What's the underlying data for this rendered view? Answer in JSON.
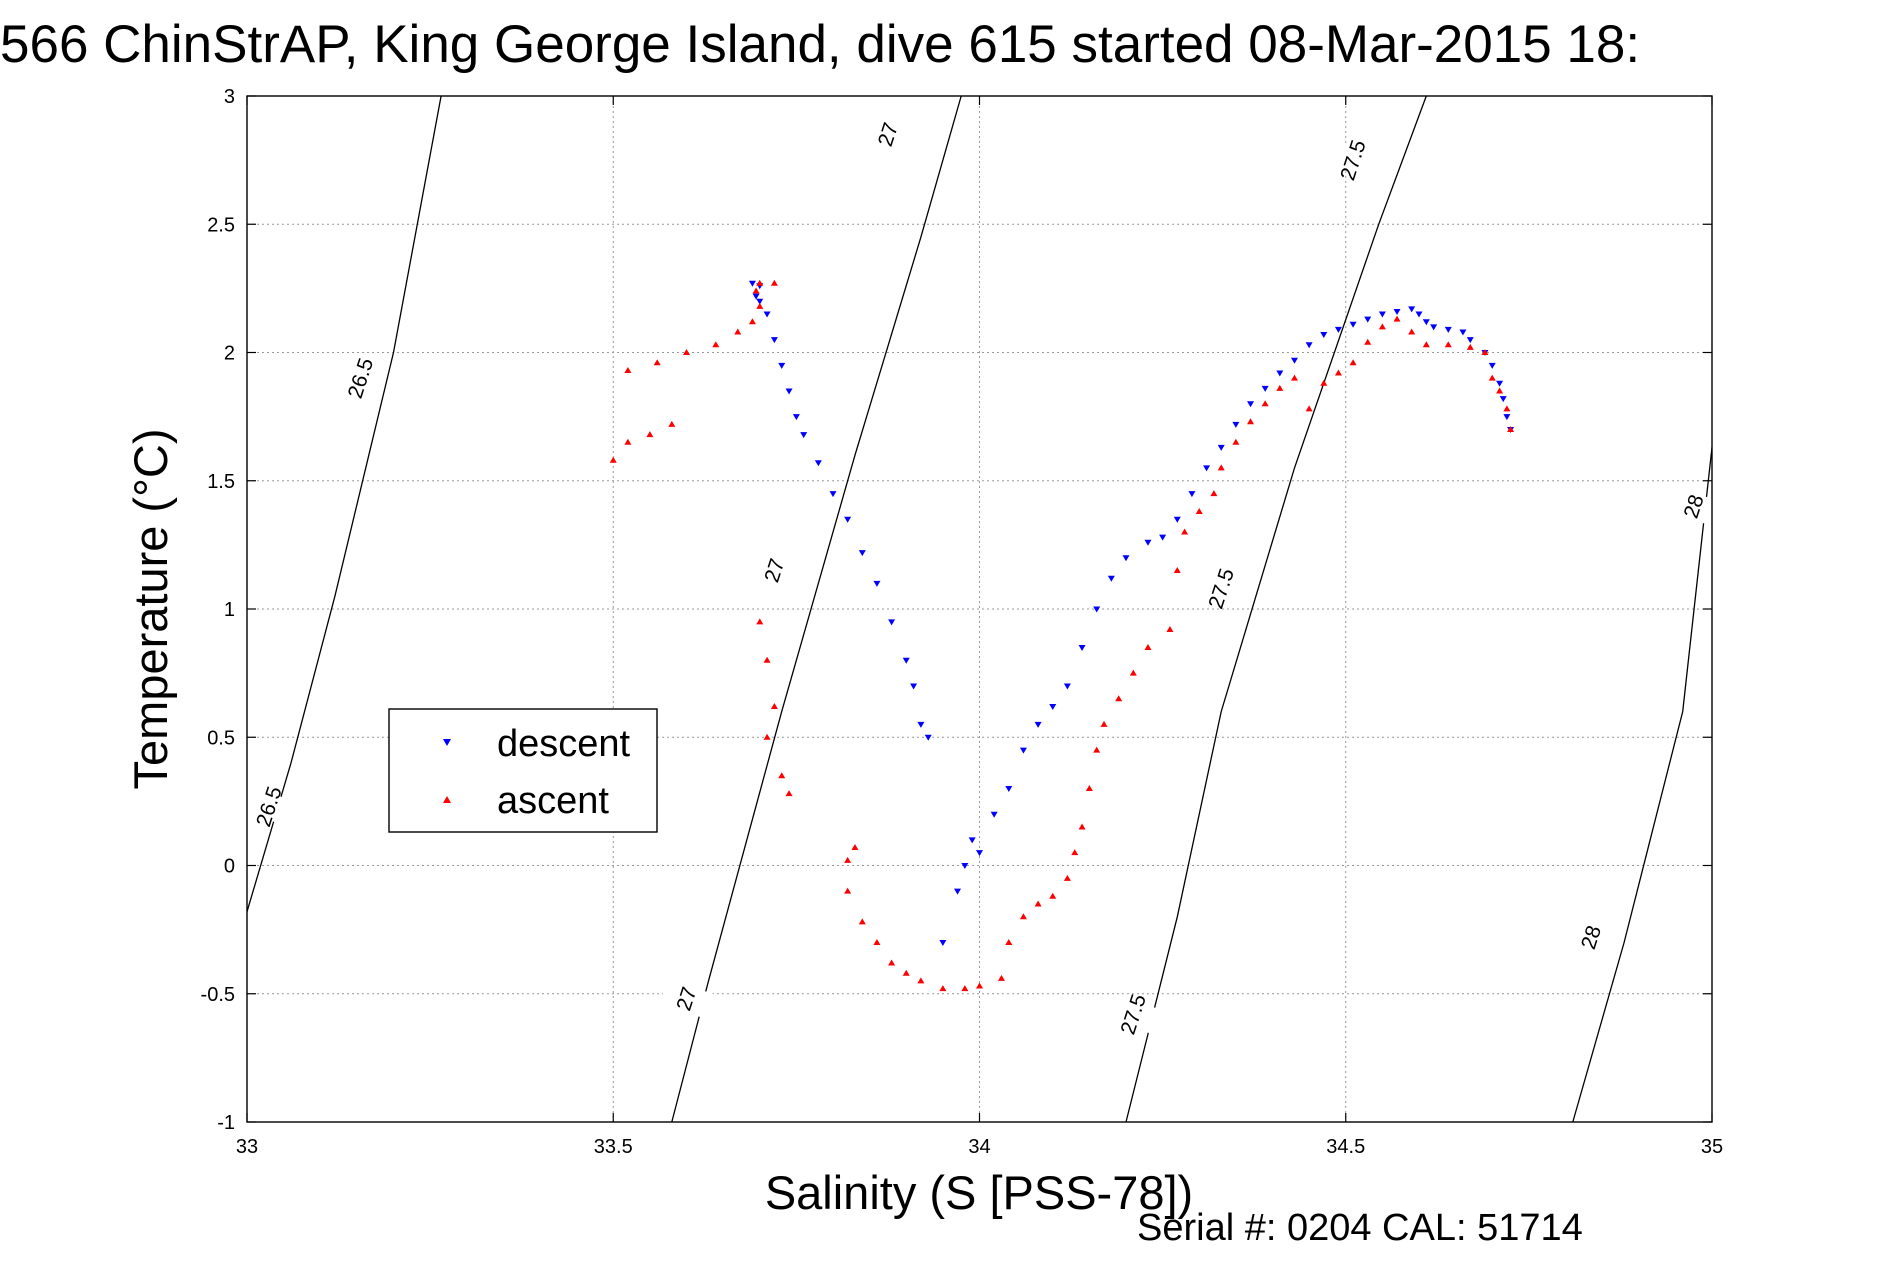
{
  "chart_data": {
    "type": "scatter",
    "title": "566 ChinStrAP, King George Island, dive 615 started 08-Mar-2015 18:",
    "xlabel": "Salinity (S [PSS-78])",
    "ylabel": "Temperature (°C)",
    "footer": "Serial #: 0204  CAL: 51714",
    "xlim": [
      33,
      35
    ],
    "ylim": [
      -1,
      3
    ],
    "xticks": [
      33,
      33.5,
      34,
      34.5,
      35
    ],
    "xtick_labels": [
      "33",
      "33.5",
      "34",
      "34.5",
      "35"
    ],
    "yticks": [
      -1,
      -0.5,
      0,
      0.5,
      1,
      1.5,
      2,
      2.5,
      3
    ],
    "ytick_labels": [
      "-1",
      "-0.5",
      "0",
      "0.5",
      "1",
      "1.5",
      "2",
      "2.5",
      "3"
    ],
    "grid": true,
    "legend_position": "lower-left",
    "contours": [
      {
        "sigma": "26.5",
        "points": [
          [
            33.0,
            -0.18
          ],
          [
            33.06,
            0.4
          ],
          [
            33.12,
            1.05
          ],
          [
            33.2,
            2.0
          ],
          [
            33.265,
            3.0
          ]
        ],
        "labels": [
          {
            "x": 33.03,
            "y": 0.23,
            "text": "26.5"
          },
          {
            "x": 33.155,
            "y": 1.9,
            "text": "26.5"
          }
        ]
      },
      {
        "sigma": "27",
        "points": [
          [
            33.58,
            -1.0
          ],
          [
            33.63,
            -0.45
          ],
          [
            33.73,
            0.6
          ],
          [
            33.83,
            1.6
          ],
          [
            33.92,
            2.45
          ],
          [
            33.975,
            3.0
          ]
        ],
        "labels": [
          {
            "x": 33.6,
            "y": -0.52,
            "text": "27"
          },
          {
            "x": 33.72,
            "y": 1.15,
            "text": "27"
          },
          {
            "x": 33.875,
            "y": 2.85,
            "text": "27"
          }
        ]
      },
      {
        "sigma": "27.5",
        "points": [
          [
            34.2,
            -1.0
          ],
          [
            34.27,
            -0.2
          ],
          [
            34.33,
            0.6
          ],
          [
            34.43,
            1.55
          ],
          [
            34.545,
            2.5
          ],
          [
            34.61,
            3.0
          ]
        ],
        "labels": [
          {
            "x": 34.21,
            "y": -0.58,
            "text": "27.5"
          },
          {
            "x": 34.33,
            "y": 1.08,
            "text": "27.5"
          },
          {
            "x": 34.51,
            "y": 2.75,
            "text": "27.5"
          }
        ]
      },
      {
        "sigma": "28",
        "points": [
          [
            34.81,
            -1.0
          ],
          [
            34.88,
            -0.3
          ],
          [
            34.96,
            0.6
          ],
          [
            35.0,
            1.63
          ]
        ],
        "labels": [
          {
            "x": 34.835,
            "y": -0.28,
            "text": "28"
          },
          {
            "x": 34.975,
            "y": 1.4,
            "text": "28"
          }
        ]
      }
    ],
    "series": [
      {
        "name": "descent",
        "color": "#0000ff",
        "marker": "triangle-down",
        "points": [
          [
            33.69,
            2.27
          ],
          [
            33.7,
            2.26
          ],
          [
            33.695,
            2.22
          ],
          [
            33.7,
            2.2
          ],
          [
            33.71,
            2.15
          ],
          [
            33.72,
            2.05
          ],
          [
            33.73,
            1.95
          ],
          [
            33.74,
            1.85
          ],
          [
            33.75,
            1.75
          ],
          [
            33.76,
            1.68
          ],
          [
            33.78,
            1.57
          ],
          [
            33.8,
            1.45
          ],
          [
            33.82,
            1.35
          ],
          [
            33.84,
            1.22
          ],
          [
            33.86,
            1.1
          ],
          [
            33.88,
            0.95
          ],
          [
            33.9,
            0.8
          ],
          [
            33.91,
            0.7
          ],
          [
            33.92,
            0.55
          ],
          [
            33.93,
            0.5
          ],
          [
            33.95,
            -0.3
          ],
          [
            33.97,
            -0.1
          ],
          [
            33.98,
            0.0
          ],
          [
            33.99,
            0.1
          ],
          [
            34.0,
            0.05
          ],
          [
            34.02,
            0.2
          ],
          [
            34.04,
            0.3
          ],
          [
            34.06,
            0.45
          ],
          [
            34.08,
            0.55
          ],
          [
            34.1,
            0.62
          ],
          [
            34.12,
            0.7
          ],
          [
            34.14,
            0.85
          ],
          [
            34.16,
            1.0
          ],
          [
            34.18,
            1.12
          ],
          [
            34.2,
            1.2
          ],
          [
            34.23,
            1.26
          ],
          [
            34.25,
            1.28
          ],
          [
            34.27,
            1.35
          ],
          [
            34.29,
            1.45
          ],
          [
            34.31,
            1.55
          ],
          [
            34.33,
            1.63
          ],
          [
            34.35,
            1.72
          ],
          [
            34.37,
            1.8
          ],
          [
            34.39,
            1.86
          ],
          [
            34.41,
            1.92
          ],
          [
            34.43,
            1.97
          ],
          [
            34.45,
            2.03
          ],
          [
            34.47,
            2.07
          ],
          [
            34.49,
            2.09
          ],
          [
            34.51,
            2.11
          ],
          [
            34.53,
            2.13
          ],
          [
            34.55,
            2.15
          ],
          [
            34.57,
            2.16
          ],
          [
            34.59,
            2.17
          ],
          [
            34.6,
            2.15
          ],
          [
            34.61,
            2.12
          ],
          [
            34.62,
            2.1
          ],
          [
            34.64,
            2.09
          ],
          [
            34.66,
            2.08
          ],
          [
            34.67,
            2.05
          ],
          [
            34.69,
            2.0
          ],
          [
            34.7,
            1.95
          ],
          [
            34.71,
            1.88
          ],
          [
            34.715,
            1.82
          ],
          [
            34.72,
            1.75
          ],
          [
            34.725,
            1.7
          ]
        ]
      },
      {
        "name": "ascent",
        "color": "#ff0000",
        "marker": "triangle-up",
        "points": [
          [
            33.5,
            1.58
          ],
          [
            33.52,
            1.65
          ],
          [
            33.55,
            1.68
          ],
          [
            33.58,
            1.72
          ],
          [
            33.52,
            1.93
          ],
          [
            33.56,
            1.96
          ],
          [
            33.6,
            2.0
          ],
          [
            33.64,
            2.03
          ],
          [
            33.67,
            2.08
          ],
          [
            33.69,
            2.12
          ],
          [
            33.7,
            2.18
          ],
          [
            33.695,
            2.24
          ],
          [
            33.7,
            2.27
          ],
          [
            33.72,
            2.27
          ],
          [
            33.7,
            0.95
          ],
          [
            33.71,
            0.8
          ],
          [
            33.72,
            0.62
          ],
          [
            33.71,
            0.5
          ],
          [
            33.73,
            0.35
          ],
          [
            33.74,
            0.28
          ],
          [
            33.82,
            0.02
          ],
          [
            33.83,
            0.07
          ],
          [
            33.82,
            -0.1
          ],
          [
            33.84,
            -0.22
          ],
          [
            33.86,
            -0.3
          ],
          [
            33.88,
            -0.38
          ],
          [
            33.9,
            -0.42
          ],
          [
            33.92,
            -0.45
          ],
          [
            33.95,
            -0.48
          ],
          [
            33.98,
            -0.48
          ],
          [
            34.0,
            -0.47
          ],
          [
            34.03,
            -0.44
          ],
          [
            34.04,
            -0.3
          ],
          [
            34.06,
            -0.2
          ],
          [
            34.08,
            -0.15
          ],
          [
            34.1,
            -0.12
          ],
          [
            34.12,
            -0.05
          ],
          [
            34.13,
            0.05
          ],
          [
            34.14,
            0.15
          ],
          [
            34.15,
            0.3
          ],
          [
            34.16,
            0.45
          ],
          [
            34.17,
            0.55
          ],
          [
            34.19,
            0.65
          ],
          [
            34.21,
            0.75
          ],
          [
            34.23,
            0.85
          ],
          [
            34.26,
            0.92
          ],
          [
            34.27,
            1.15
          ],
          [
            34.28,
            1.3
          ],
          [
            34.3,
            1.38
          ],
          [
            34.32,
            1.45
          ],
          [
            34.33,
            1.55
          ],
          [
            34.35,
            1.65
          ],
          [
            34.37,
            1.73
          ],
          [
            34.39,
            1.8
          ],
          [
            34.41,
            1.86
          ],
          [
            34.43,
            1.9
          ],
          [
            34.45,
            1.78
          ],
          [
            34.47,
            1.88
          ],
          [
            34.49,
            1.92
          ],
          [
            34.51,
            1.96
          ],
          [
            34.53,
            2.04
          ],
          [
            34.55,
            2.1
          ],
          [
            34.57,
            2.13
          ],
          [
            34.59,
            2.08
          ],
          [
            34.61,
            2.03
          ],
          [
            34.64,
            2.03
          ],
          [
            34.67,
            2.02
          ],
          [
            34.69,
            2.0
          ],
          [
            34.7,
            1.9
          ],
          [
            34.71,
            1.85
          ],
          [
            34.72,
            1.78
          ],
          [
            34.725,
            1.7
          ]
        ]
      }
    ]
  }
}
